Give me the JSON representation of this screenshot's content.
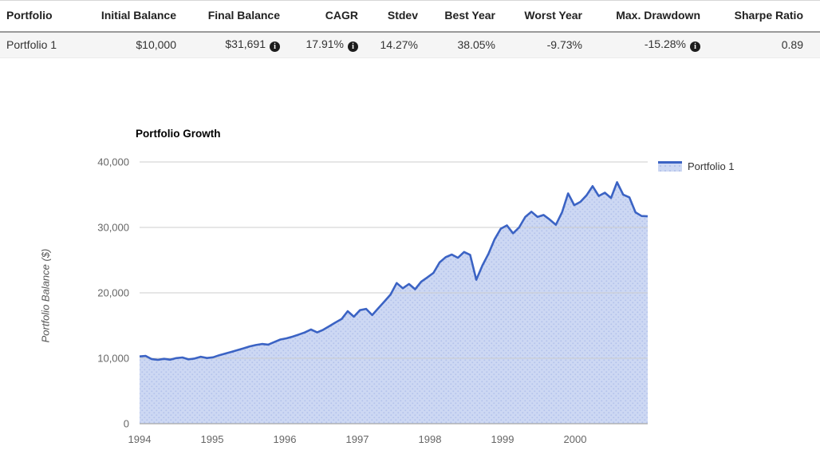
{
  "table": {
    "columns": [
      "Portfolio",
      "Initial Balance",
      "Final Balance",
      "CAGR",
      "Stdev",
      "Best Year",
      "Worst Year",
      "Max. Drawdown",
      "Sharpe Ratio"
    ],
    "row": {
      "name": "Portfolio 1",
      "initial_balance": "$10,000",
      "final_balance": "$31,691",
      "cagr": "17.91%",
      "stdev": "14.27%",
      "best_year": "38.05%",
      "worst_year": "-9.73%",
      "max_drawdown": "-15.28%",
      "sharpe_ratio": "0.89"
    },
    "info_icon_glyph": "i"
  },
  "chart_data": {
    "type": "area",
    "title": "Portfolio Growth",
    "ylabel": "Portfolio Balance ($)",
    "xlabel": "",
    "ylim": [
      0,
      40000
    ],
    "y_ticks": [
      "0",
      "10,000",
      "20,000",
      "30,000",
      "40,000"
    ],
    "x_ticks": [
      "1994",
      "1995",
      "1996",
      "1997",
      "1998",
      "1999",
      "2000"
    ],
    "grid": true,
    "legend_position": "right",
    "legend": [
      {
        "name": "Portfolio 1",
        "line_color": "#3b63c4",
        "fill_color": "#cdd8f3"
      }
    ],
    "series": [
      {
        "name": "Portfolio 1",
        "frequency": "monthly",
        "values": [
          10280,
          10350,
          9870,
          9760,
          9920,
          9780,
          10020,
          10120,
          9830,
          9960,
          10230,
          10040,
          10150,
          10460,
          10720,
          10980,
          11260,
          11520,
          11820,
          12030,
          12180,
          12080,
          12480,
          12860,
          13050,
          13300,
          13620,
          13950,
          14400,
          13950,
          14350,
          14900,
          15480,
          16000,
          17200,
          16350,
          17350,
          17550,
          16600,
          17650,
          18700,
          19750,
          21500,
          20700,
          21350,
          20550,
          21700,
          22350,
          23050,
          24650,
          25450,
          25850,
          25350,
          26250,
          25800,
          22000,
          24200,
          26000,
          28200,
          29800,
          30300,
          29100,
          30000,
          31600,
          32400,
          31600,
          31900,
          31200,
          30400,
          32300,
          35200,
          33400,
          33900,
          34900,
          36300,
          34800,
          35300,
          34500,
          36900,
          35000,
          34600,
          32300,
          31750,
          31691
        ]
      }
    ]
  },
  "colors": {
    "grid_line": "#cccccc",
    "axis_line": "#a6a6a6",
    "tick_label": "#666666",
    "row_background": "#f5f5f5"
  }
}
